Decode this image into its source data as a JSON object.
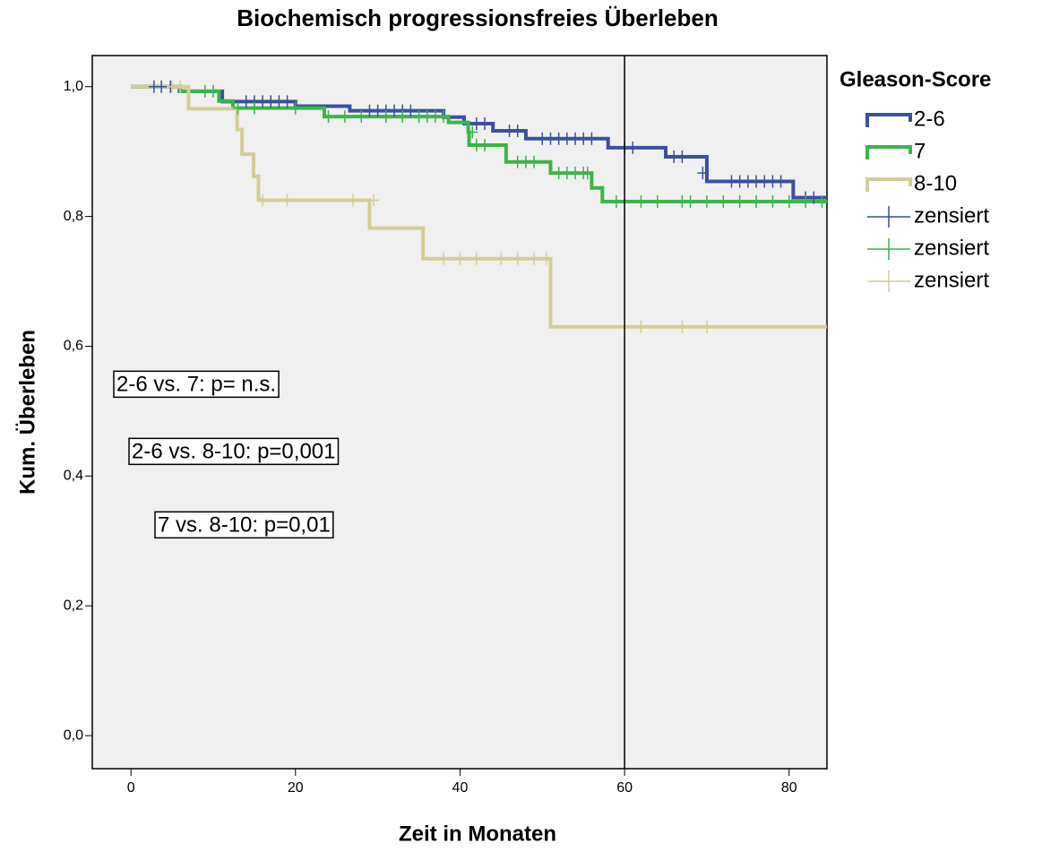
{
  "chart_data": {
    "type": "kaplan-meier",
    "title": "Biochemisch progressionsfreies Überleben",
    "x_label": "Zeit in Monaten",
    "y_label": "Kum. Überleben",
    "legend_title": "Gleason-Score",
    "xlim": [
      -4.7,
      84.6
    ],
    "ylim": [
      -0.051,
      1.048
    ],
    "xticks": [
      0,
      20,
      40,
      60,
      80
    ],
    "yticks": [
      {
        "value": 0,
        "label": "0,0"
      },
      {
        "value": 0.2,
        "label": "0,2"
      },
      {
        "value": 0.4,
        "label": "0,4"
      },
      {
        "value": 0.6,
        "label": "0,6"
      },
      {
        "value": 0.8,
        "label": "0,8"
      },
      {
        "value": 1,
        "label": "1,0"
      }
    ],
    "reference_x": 60,
    "series": [
      {
        "name": "2-6",
        "color": "#3d4f9f",
        "marker": "step",
        "x": [
          0,
          5.9,
          11.1,
          20,
          26.6,
          38,
          40.5,
          44,
          48,
          58,
          65,
          70,
          80.5,
          84.6
        ],
        "values": [
          1,
          0.993,
          0.977,
          0.97,
          0.963,
          0.953,
          0.943,
          0.932,
          0.92,
          0.906,
          0.892,
          0.854,
          0.829,
          0.829
        ]
      },
      {
        "name": "7",
        "color": "#3cb44b",
        "marker": "step",
        "x": [
          0,
          6,
          10.7,
          12.4,
          23.5,
          38.6,
          41,
          41.1,
          45.6,
          51,
          56,
          57.3,
          84.6
        ],
        "values": [
          1,
          0.993,
          0.978,
          0.967,
          0.954,
          0.945,
          0.93,
          0.91,
          0.884,
          0.867,
          0.844,
          0.823,
          0.823
        ]
      },
      {
        "name": "8-10",
        "color": "#d4cc99",
        "marker": "step",
        "x": [
          0,
          7,
          12.9,
          13.5,
          14.9,
          15.5,
          29,
          35.5,
          51,
          84.6
        ],
        "values": [
          1,
          0.966,
          0.934,
          0.896,
          0.862,
          0.825,
          0.782,
          0.735,
          0.63,
          0.63
        ]
      },
      {
        "name": "zensiert",
        "color": "#3d4f9f",
        "marker": "plus",
        "x": [
          2.8,
          3.7,
          4.8,
          14,
          15,
          16,
          17,
          18,
          19,
          29,
          30,
          31,
          32,
          33,
          34,
          42,
          43,
          46,
          47,
          50,
          51,
          52,
          53,
          54,
          55,
          56,
          60,
          61,
          66,
          67,
          69.5,
          73,
          74,
          75,
          76,
          77,
          78,
          79,
          82,
          83
        ],
        "values": [
          1,
          1,
          1,
          0.977,
          0.977,
          0.977,
          0.977,
          0.977,
          0.977,
          0.963,
          0.963,
          0.963,
          0.963,
          0.963,
          0.963,
          0.943,
          0.943,
          0.932,
          0.932,
          0.92,
          0.92,
          0.92,
          0.92,
          0.92,
          0.92,
          0.92,
          0.906,
          0.906,
          0.892,
          0.892,
          0.867,
          0.854,
          0.854,
          0.854,
          0.854,
          0.854,
          0.854,
          0.854,
          0.829,
          0.829
        ]
      },
      {
        "name": "zensiert",
        "color": "#3cb44b",
        "marker": "plus",
        "x": [
          9,
          10,
          13,
          15,
          20,
          24,
          26,
          28,
          31,
          33,
          35,
          36,
          37,
          38,
          41.5,
          42,
          43,
          47,
          48,
          49,
          52,
          53,
          54,
          55,
          55.5,
          59,
          62,
          64,
          67,
          68,
          70,
          72,
          74,
          76,
          78,
          80,
          82,
          84
        ],
        "values": [
          0.993,
          0.993,
          0.967,
          0.967,
          0.967,
          0.954,
          0.954,
          0.954,
          0.954,
          0.954,
          0.954,
          0.954,
          0.954,
          0.954,
          0.93,
          0.91,
          0.91,
          0.884,
          0.884,
          0.884,
          0.867,
          0.867,
          0.867,
          0.867,
          0.867,
          0.823,
          0.823,
          0.823,
          0.823,
          0.823,
          0.823,
          0.823,
          0.823,
          0.823,
          0.823,
          0.823,
          0.823,
          0.823
        ]
      },
      {
        "name": "zensiert",
        "color": "#d4cc99",
        "marker": "plus",
        "x": [
          5,
          6,
          16,
          19,
          27,
          29.5,
          38,
          40,
          42,
          45,
          47,
          49,
          50.5,
          62,
          67,
          70
        ],
        "values": [
          1,
          1,
          0.825,
          0.825,
          0.825,
          0.825,
          0.735,
          0.735,
          0.735,
          0.735,
          0.735,
          0.735,
          0.735,
          0.63,
          0.63,
          0.63
        ]
      }
    ],
    "annotations": [
      "2-6 vs. 7: p= n.s.",
      "2-6 vs. 8-10: p=0,001",
      "7 vs. 8-10: p=0,01"
    ]
  }
}
